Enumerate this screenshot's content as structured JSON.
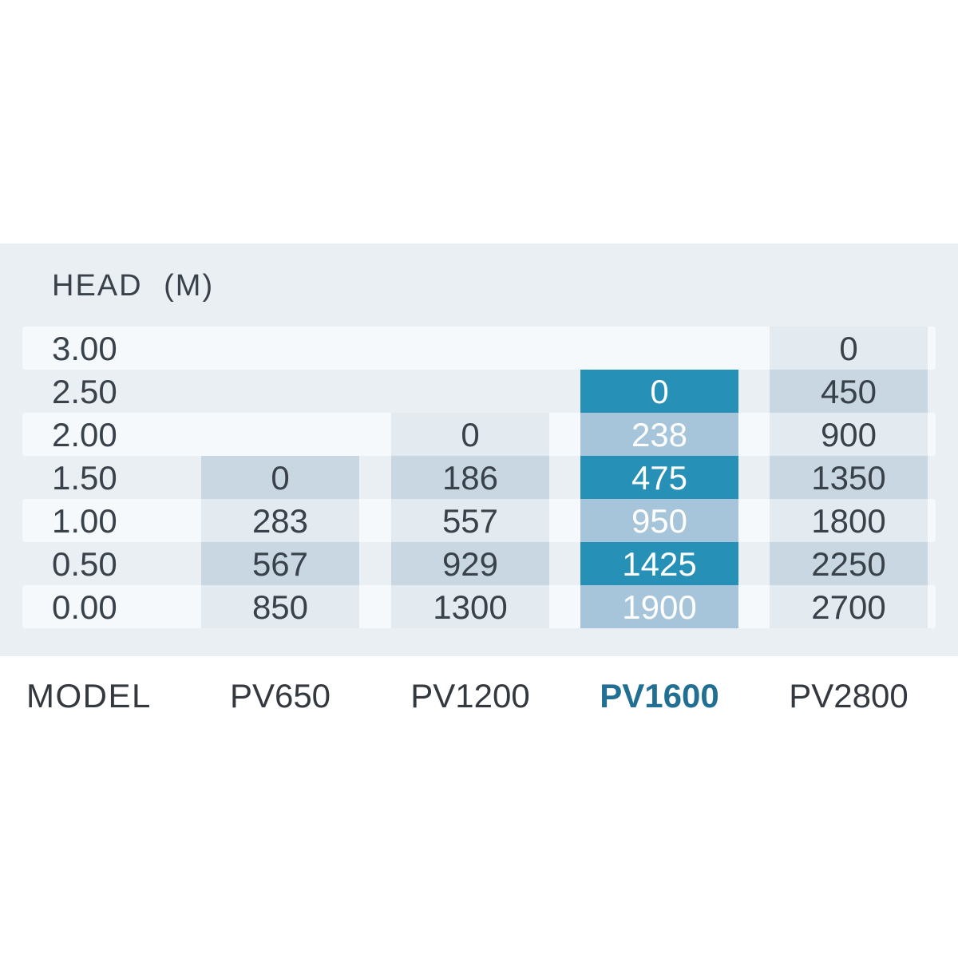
{
  "chart_data": {
    "type": "table",
    "row_header": "HEAD (M)",
    "model_row_label": "MODEL",
    "columns": [
      "PV650",
      "PV1200",
      "PV1600",
      "PV2800"
    ],
    "highlighted_column": "PV1600",
    "highlight_column_index": 2,
    "rows": [
      {
        "head": "3.00",
        "values": [
          null,
          null,
          null,
          "0"
        ]
      },
      {
        "head": "2.50",
        "values": [
          null,
          null,
          "0",
          "450"
        ]
      },
      {
        "head": "2.00",
        "values": [
          null,
          "0",
          "238",
          "900"
        ]
      },
      {
        "head": "1.50",
        "values": [
          "0",
          "186",
          "475",
          "1350"
        ]
      },
      {
        "head": "1.00",
        "values": [
          "283",
          "557",
          "950",
          "1800"
        ]
      },
      {
        "head": "0.50",
        "values": [
          "567",
          "929",
          "1425",
          "2250"
        ]
      },
      {
        "head": "0.00",
        "values": [
          "850",
          "1300",
          "1900",
          "2700"
        ]
      }
    ]
  },
  "colors": {
    "panel-bg": "#eaeff3",
    "stripe": "#f5f9fb",
    "cell-light": "#e3eaf0",
    "cell-dark": "#c9d7e3",
    "hl-dark": "#2690b6",
    "hl-light": "#a7c5da",
    "text-dark": "#39424a",
    "model-text": "#33393f",
    "accent": "#216f93",
    "white-text": "#ffffff"
  }
}
